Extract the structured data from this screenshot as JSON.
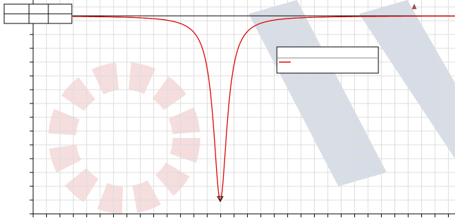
{
  "plot": {
    "grid": true,
    "line_color": "#e00000"
  }
}
